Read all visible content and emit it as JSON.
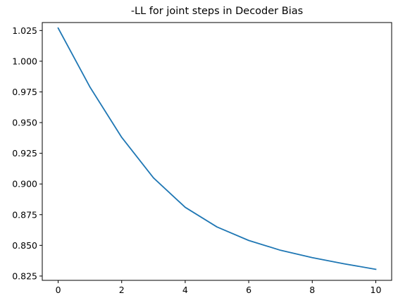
{
  "chart_data": {
    "type": "line",
    "title": "-LL for joint steps in Decoder Bias",
    "xlabel": "",
    "ylabel": "",
    "xlim": [
      -0.5,
      10.5
    ],
    "ylim": [
      0.8215,
      1.0315
    ],
    "xticks": [
      0,
      2,
      4,
      6,
      8,
      10
    ],
    "yticks": [
      0.825,
      0.85,
      0.875,
      0.9,
      0.925,
      0.95,
      0.975,
      1.0,
      1.025
    ],
    "ytick_labels": [
      "0.825",
      "0.850",
      "0.875",
      "0.900",
      "0.925",
      "0.950",
      "0.975",
      "1.000",
      "1.025"
    ],
    "grid": false,
    "series": [
      {
        "color": "#1f77b4",
        "x": [
          0,
          1,
          2,
          3,
          4,
          5,
          6,
          7,
          8,
          9,
          10
        ],
        "y": [
          1.027,
          0.979,
          0.938,
          0.905,
          0.881,
          0.865,
          0.854,
          0.846,
          0.84,
          0.835,
          0.8305
        ]
      }
    ]
  }
}
